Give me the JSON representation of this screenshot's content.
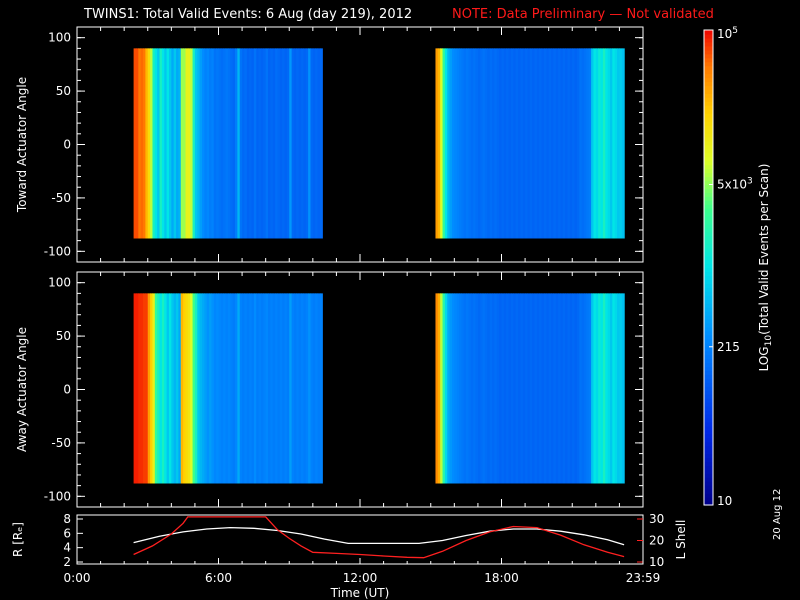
{
  "header": {
    "title": "TWINS1: Total Valid Events:  6 Aug (day 219), 2012",
    "note": "NOTE: Data Preliminary — Not validated",
    "note_color": "#ff1a1a"
  },
  "stamp": "20 Aug 12",
  "chart_data": [
    {
      "type": "heatmap",
      "name": "toward",
      "ylabel": "Toward Actuator Angle",
      "ylim": [
        -110,
        110
      ],
      "yticks": [
        100,
        50,
        0,
        -50,
        -100
      ],
      "xlim": [
        0,
        24
      ],
      "segments": [
        {
          "start_hr": 2.4,
          "end_hr": 10.4,
          "columns": [
            0.95,
            0.95,
            0.92,
            0.93,
            0.92,
            0.85,
            0.8,
            0.7,
            0.55,
            0.5,
            0.45,
            0.55,
            0.5,
            0.45,
            0.5,
            0.45,
            0.4,
            0.45,
            0.4,
            0.42,
            0.68,
            0.68,
            0.75,
            0.75,
            0.7,
            0.55,
            0.45,
            0.42,
            0.38,
            0.35,
            0.33,
            0.34,
            0.32,
            0.33,
            0.3,
            0.31,
            0.3,
            0.29,
            0.3,
            0.31,
            0.3,
            0.29,
            0.28,
            0.32,
            0.42,
            0.3,
            0.28,
            0.29,
            0.27,
            0.28,
            0.27,
            0.3,
            0.27,
            0.28,
            0.27,
            0.28,
            0.3,
            0.27,
            0.28,
            0.27,
            0.29,
            0.28,
            0.27,
            0.28,
            0.27,
            0.28,
            0.37,
            0.28,
            0.27,
            0.28,
            0.27,
            0.28,
            0.27,
            0.28,
            0.36,
            0.28,
            0.27,
            0.28,
            0.27,
            0.28
          ]
        },
        {
          "start_hr": 15.2,
          "end_hr": 23.2,
          "columns": [
            0.88,
            0.85,
            0.72,
            0.6,
            0.5,
            0.42,
            0.38,
            0.35,
            0.34,
            0.33,
            0.32,
            0.31,
            0.3,
            0.31,
            0.3,
            0.29,
            0.3,
            0.29,
            0.28,
            0.29,
            0.3,
            0.29,
            0.28,
            0.29,
            0.28,
            0.29,
            0.28,
            0.27,
            0.28,
            0.27,
            0.28,
            0.27,
            0.28,
            0.27,
            0.28,
            0.27,
            0.28,
            0.27,
            0.28,
            0.27,
            0.28,
            0.27,
            0.28,
            0.27,
            0.28,
            0.27,
            0.28,
            0.27,
            0.28,
            0.27,
            0.28,
            0.27,
            0.28,
            0.27,
            0.28,
            0.27,
            0.28,
            0.27,
            0.28,
            0.27,
            0.28,
            0.3,
            0.29,
            0.3,
            0.31,
            0.32,
            0.45,
            0.5,
            0.48,
            0.52,
            0.5,
            0.55,
            0.5,
            0.48,
            0.45,
            0.5,
            0.48,
            0.45,
            0.46,
            0.44
          ]
        }
      ]
    },
    {
      "type": "heatmap",
      "name": "away",
      "ylabel": "Away Actuator Angle",
      "ylim": [
        -110,
        110
      ],
      "yticks": [
        100,
        50,
        0,
        -50,
        -100
      ],
      "xlim": [
        0,
        24
      ],
      "segments": [
        {
          "start_hr": 2.4,
          "end_hr": 10.4,
          "columns": [
            0.98,
            0.98,
            0.97,
            0.97,
            0.96,
            0.96,
            0.88,
            0.82,
            0.75,
            0.6,
            0.55,
            0.5,
            0.55,
            0.5,
            0.45,
            0.5,
            0.45,
            0.42,
            0.45,
            0.4,
            0.85,
            0.82,
            0.8,
            0.78,
            0.72,
            0.62,
            0.55,
            0.45,
            0.42,
            0.4,
            0.38,
            0.36,
            0.38,
            0.36,
            0.34,
            0.35,
            0.34,
            0.33,
            0.34,
            0.33,
            0.34,
            0.33,
            0.32,
            0.34,
            0.4,
            0.33,
            0.32,
            0.33,
            0.32,
            0.33,
            0.32,
            0.35,
            0.32,
            0.33,
            0.32,
            0.33,
            0.34,
            0.32,
            0.33,
            0.32,
            0.33,
            0.32,
            0.33,
            0.32,
            0.33,
            0.32,
            0.38,
            0.33,
            0.32,
            0.33,
            0.32,
            0.33,
            0.32,
            0.33,
            0.36,
            0.33,
            0.32,
            0.33,
            0.32,
            0.33
          ]
        },
        {
          "start_hr": 15.2,
          "end_hr": 23.2,
          "columns": [
            0.9,
            0.86,
            0.7,
            0.58,
            0.48,
            0.4,
            0.37,
            0.35,
            0.34,
            0.33,
            0.32,
            0.31,
            0.3,
            0.31,
            0.3,
            0.29,
            0.3,
            0.29,
            0.28,
            0.29,
            0.3,
            0.29,
            0.28,
            0.29,
            0.28,
            0.29,
            0.28,
            0.27,
            0.28,
            0.27,
            0.28,
            0.27,
            0.28,
            0.27,
            0.28,
            0.27,
            0.28,
            0.27,
            0.28,
            0.27,
            0.28,
            0.27,
            0.28,
            0.27,
            0.28,
            0.27,
            0.28,
            0.27,
            0.28,
            0.27,
            0.28,
            0.27,
            0.28,
            0.27,
            0.28,
            0.27,
            0.28,
            0.27,
            0.28,
            0.27,
            0.28,
            0.3,
            0.29,
            0.3,
            0.31,
            0.32,
            0.45,
            0.5,
            0.48,
            0.52,
            0.5,
            0.55,
            0.5,
            0.48,
            0.45,
            0.5,
            0.48,
            0.45,
            0.46,
            0.44
          ]
        }
      ]
    },
    {
      "type": "line",
      "name": "orbit",
      "ylabel_left": "R [Rₑ]",
      "ylabel_right": "L Shell",
      "ylim_left": [
        2,
        8
      ],
      "yticks_left": [
        8,
        6,
        4,
        2
      ],
      "ylim_right": [
        10,
        30
      ],
      "yticks_right": [
        30,
        20,
        10
      ],
      "xlim": [
        0,
        24
      ],
      "xlabel": "Time (UT)",
      "xticks": [
        0,
        6,
        12,
        18,
        24
      ],
      "xticklabels": [
        "0:00",
        "6:00",
        "12:00",
        "18:00",
        "23:59"
      ],
      "series": [
        {
          "name": "R",
          "color": "#ffffff",
          "axis": "left",
          "x": [
            2.4,
            3.5,
            4.5,
            5.5,
            6.5,
            7.5,
            8.5,
            9.5,
            10.5,
            11.5,
            12.5,
            13.5,
            14.5,
            15.5,
            16.5,
            17.5,
            18.5,
            19.5,
            20.5,
            21.5,
            22.5,
            23.2
          ],
          "y": [
            4.7,
            5.6,
            6.2,
            6.6,
            6.8,
            6.7,
            6.4,
            5.9,
            5.2,
            4.6,
            4.6,
            4.6,
            4.6,
            5.0,
            5.7,
            6.3,
            6.6,
            6.6,
            6.3,
            5.8,
            5.1,
            4.4
          ]
        },
        {
          "name": "L Shell",
          "color": "#ff2020",
          "axis": "right",
          "x": [
            2.4,
            3.2,
            4.0,
            4.5,
            4.7,
            8.0,
            8.5,
            9.0,
            9.5,
            10.0,
            11.0,
            12.0,
            13.0,
            14.0,
            14.7,
            15.5,
            16.5,
            17.5,
            18.5,
            19.5,
            20.5,
            21.5,
            22.5,
            23.2
          ],
          "y": [
            13.5,
            17.5,
            23.0,
            28.0,
            31.0,
            31.0,
            25.0,
            21.0,
            17.5,
            14.5,
            14.0,
            13.5,
            12.8,
            12.2,
            12.0,
            15.0,
            20.0,
            24.0,
            26.5,
            26.0,
            22.5,
            18.0,
            14.5,
            12.5
          ]
        }
      ]
    },
    {
      "type": "colorbar",
      "name": "colorbar",
      "label": "LOG10(Total Valid Events per Scan)",
      "label_main": "LOG",
      "label_sub": "10",
      "label_rest": "(Total Valid Events per Scan)",
      "scale": "log",
      "range": [
        10,
        100000
      ],
      "ticks": [
        {
          "value": 100000,
          "label": "10",
          "sup": "5"
        },
        {
          "value": 5000,
          "label": "5x10",
          "sup": "3"
        },
        {
          "value": 215,
          "label": "215",
          "sup": ""
        },
        {
          "value": 10,
          "label": "10",
          "sup": ""
        }
      ]
    }
  ]
}
